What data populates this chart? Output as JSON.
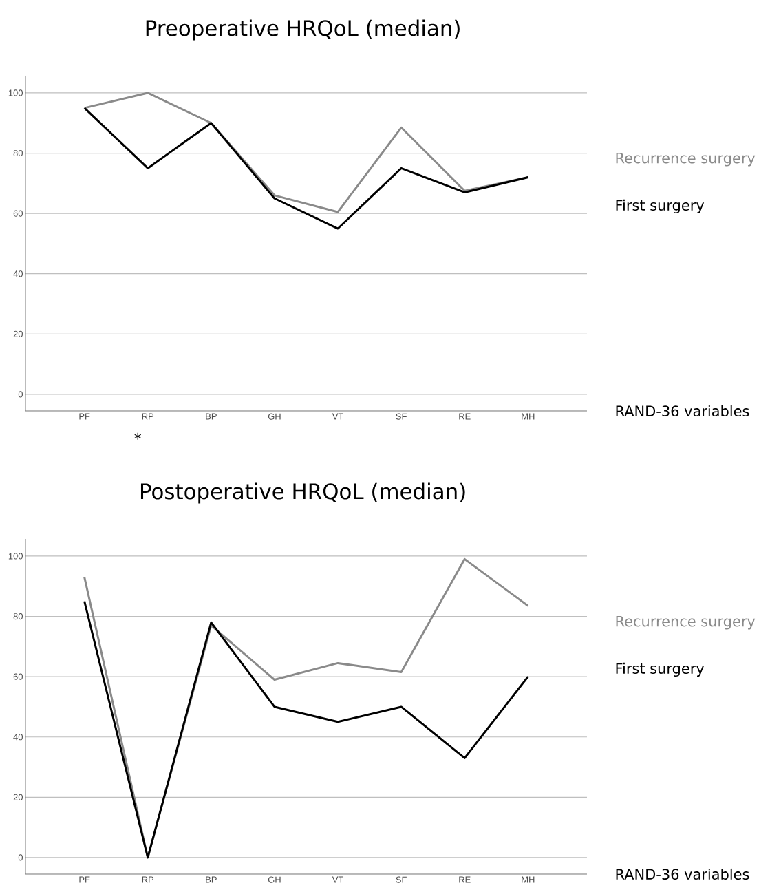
{
  "chart_data": [
    {
      "type": "line",
      "title": "Preoperative HRQoL (median)",
      "xlabel": "RAND-36 variables",
      "categories": [
        "PF",
        "RP",
        "BP",
        "GH",
        "VT",
        "SF",
        "RE",
        "MH"
      ],
      "series": [
        {
          "name": "Recurrence surgery",
          "color": "#8a8a8a",
          "values": [
            95,
            100,
            90,
            66,
            60.5,
            88.5,
            67.5,
            72
          ]
        },
        {
          "name": "First surgery",
          "color": "#000000",
          "values": [
            95,
            75,
            90,
            65,
            55,
            75,
            67,
            72
          ]
        }
      ],
      "ylim": [
        -5.5,
        105.7
      ],
      "yticks": [
        0,
        20,
        40,
        60,
        80,
        100
      ],
      "grid": "y",
      "legend": "right",
      "annotations": [
        "*"
      ]
    },
    {
      "type": "line",
      "title": "Postoperative HRQoL (median)",
      "xlabel": "RAND-36 variables",
      "categories": [
        "PF",
        "RP",
        "BP",
        "GH",
        "VT",
        "SF",
        "RE",
        "MH"
      ],
      "series": [
        {
          "name": "Recurrence surgery",
          "color": "#8a8a8a",
          "values": [
            93,
            0,
            77,
            59,
            64.5,
            61.5,
            99,
            83.5
          ]
        },
        {
          "name": "First surgery",
          "color": "#000000",
          "values": [
            85,
            0,
            78,
            50,
            45,
            50,
            33,
            60
          ]
        }
      ],
      "ylim": [
        -5.5,
        105.7
      ],
      "yticks": [
        0,
        20,
        40,
        60,
        80,
        100
      ],
      "grid": "y",
      "legend": "right"
    }
  ]
}
